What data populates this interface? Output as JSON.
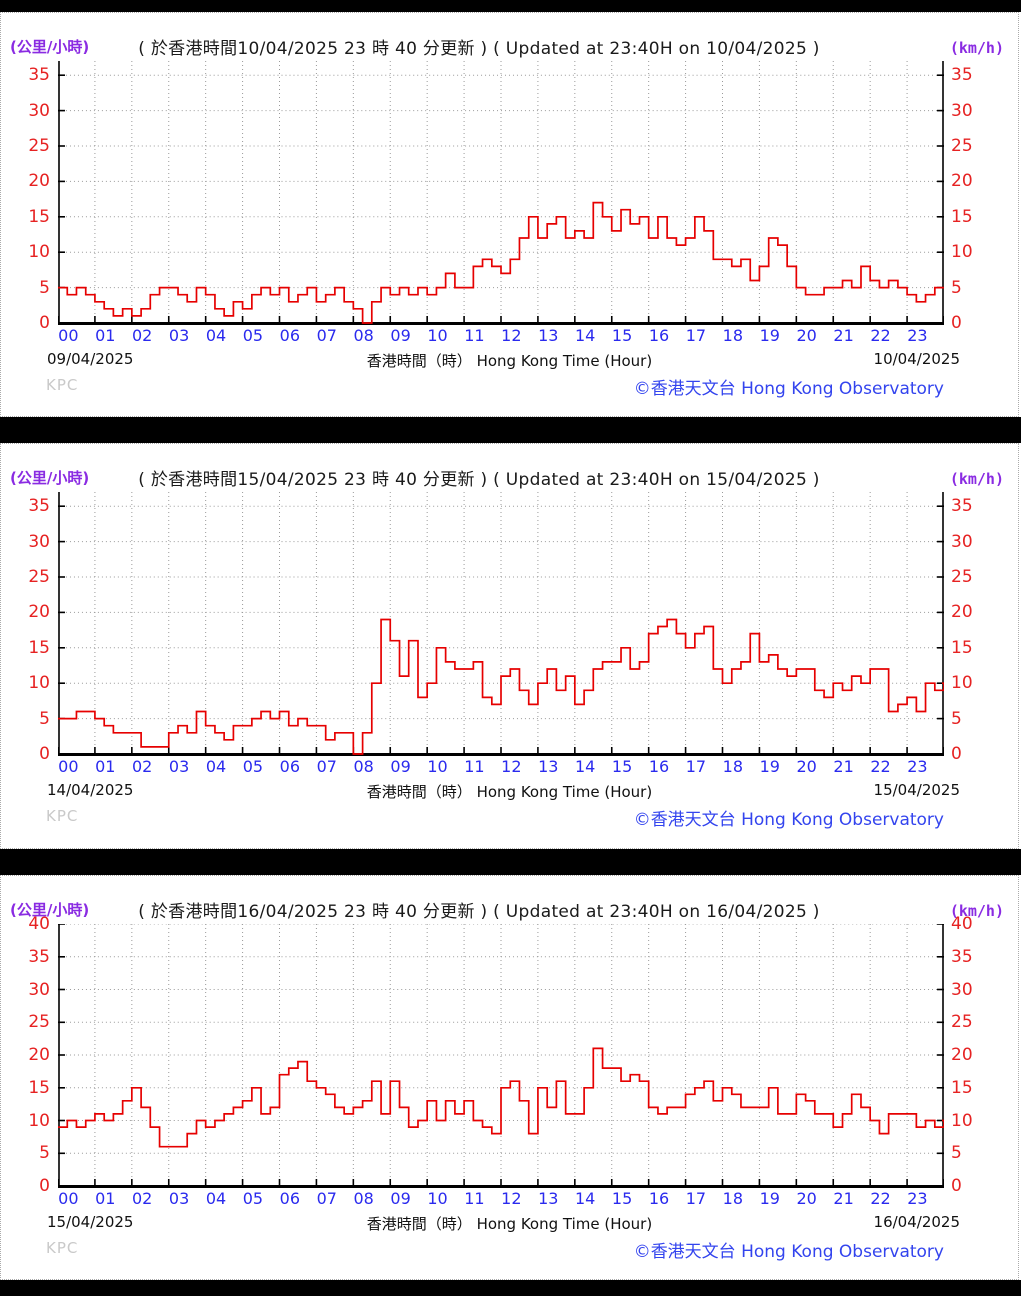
{
  "page": {
    "unit_zh": "(公里/小時)",
    "unit_en": "(km/h)",
    "time_axis_title": "香港時間（時） Hong Kong Time (Hour)",
    "watermark": "KPC",
    "copyright": "©香港天文台 Hong Kong Observatory",
    "hour_labels": [
      "00",
      "01",
      "02",
      "03",
      "04",
      "05",
      "06",
      "07",
      "08",
      "09",
      "10",
      "11",
      "12",
      "13",
      "14",
      "15",
      "16",
      "17",
      "18",
      "19",
      "20",
      "21",
      "22",
      "23"
    ],
    "colors": {
      "series_red": "#e60000",
      "ytick_red": "#e62222",
      "xtick_blue": "#2a2aee",
      "unit_purple": "#8a2be2",
      "copyright_blue": "#3344ee",
      "grid_gray": "#9a9a9a",
      "separator_black": "#000000"
    }
  },
  "chart_data": [
    {
      "type": "line",
      "title": "( 於香港時間10/04/2025 23 時 40 分更新 ) ( Updated at 23:40H on 10/04/2025 )",
      "date_left": "09/04/2025",
      "date_right": "10/04/2025",
      "xlabel": "香港時間（時） Hong Kong Time (Hour)",
      "ylabel_zh": "(公里/小時)",
      "ylabel_en": "(km/h)",
      "y_ticks": [
        0,
        5,
        10,
        15,
        20,
        25,
        30,
        35
      ],
      "y_display_max": 37,
      "x_range_hours": [
        0,
        24
      ],
      "x_step_hours": 0.25,
      "grid": true,
      "legend": "none",
      "values": [
        5,
        4,
        5,
        4,
        3,
        2,
        1,
        2,
        1,
        2,
        4,
        5,
        5,
        4,
        3,
        5,
        4,
        2,
        1,
        3,
        2,
        4,
        5,
        4,
        5,
        3,
        4,
        5,
        3,
        4,
        5,
        3,
        2,
        0,
        3,
        5,
        4,
        5,
        4,
        5,
        4,
        5,
        7,
        5,
        5,
        8,
        9,
        8,
        7,
        9,
        12,
        15,
        12,
        14,
        15,
        12,
        13,
        12,
        17,
        15,
        13,
        16,
        14,
        15,
        12,
        15,
        12,
        11,
        12,
        15,
        13,
        9,
        9,
        8,
        9,
        6,
        8,
        12,
        11,
        8,
        5,
        4,
        4,
        5,
        5,
        6,
        5,
        8,
        6,
        5,
        6,
        5,
        4,
        3,
        4,
        5,
        5
      ]
    },
    {
      "type": "line",
      "title": "( 於香港時間15/04/2025 23 時 40 分更新 ) ( Updated at 23:40H on 15/04/2025 )",
      "date_left": "14/04/2025",
      "date_right": "15/04/2025",
      "xlabel": "香港時間（時） Hong Kong Time (Hour)",
      "ylabel_zh": "(公里/小時)",
      "ylabel_en": "(km/h)",
      "y_ticks": [
        0,
        5,
        10,
        15,
        20,
        25,
        30,
        35
      ],
      "y_display_max": 37,
      "x_range_hours": [
        0,
        24
      ],
      "x_step_hours": 0.25,
      "grid": true,
      "legend": "none",
      "values": [
        5,
        5,
        6,
        6,
        5,
        4,
        3,
        3,
        3,
        1,
        1,
        1,
        3,
        4,
        3,
        6,
        4,
        3,
        2,
        4,
        4,
        5,
        6,
        5,
        6,
        4,
        5,
        4,
        4,
        2,
        3,
        3,
        0,
        3,
        10,
        19,
        16,
        11,
        16,
        8,
        10,
        15,
        13,
        12,
        12,
        13,
        8,
        7,
        11,
        12,
        9,
        7,
        10,
        12,
        9,
        11,
        7,
        9,
        12,
        13,
        13,
        15,
        12,
        13,
        17,
        18,
        19,
        17,
        15,
        17,
        18,
        12,
        10,
        12,
        13,
        17,
        13,
        14,
        12,
        11,
        12,
        12,
        9,
        8,
        10,
        9,
        11,
        10,
        12,
        12,
        6,
        7,
        8,
        6,
        10,
        9,
        10
      ]
    },
    {
      "type": "line",
      "title": "( 於香港時間16/04/2025 23 時 40 分更新 ) ( Updated at 23:40H on 16/04/2025 )",
      "date_left": "15/04/2025",
      "date_right": "16/04/2025",
      "xlabel": "香港時間（時） Hong Kong Time (Hour)",
      "ylabel_zh": "(公里/小時)",
      "ylabel_en": "(km/h)",
      "y_ticks": [
        0,
        5,
        10,
        15,
        20,
        25,
        30,
        35,
        40
      ],
      "y_display_max": 40,
      "x_range_hours": [
        0,
        24
      ],
      "x_step_hours": 0.25,
      "grid": true,
      "legend": "none",
      "values": [
        9,
        10,
        9,
        10,
        11,
        10,
        11,
        13,
        15,
        12,
        9,
        6,
        6,
        6,
        8,
        10,
        9,
        10,
        11,
        12,
        13,
        15,
        11,
        12,
        17,
        18,
        19,
        16,
        15,
        14,
        12,
        11,
        12,
        13,
        16,
        11,
        16,
        12,
        9,
        10,
        13,
        10,
        13,
        11,
        13,
        10,
        9,
        8,
        15,
        16,
        13,
        8,
        15,
        12,
        16,
        11,
        11,
        15,
        21,
        18,
        18,
        16,
        17,
        16,
        12,
        11,
        12,
        12,
        14,
        15,
        16,
        13,
        15,
        14,
        12,
        12,
        12,
        15,
        11,
        11,
        14,
        13,
        11,
        11,
        9,
        11,
        14,
        12,
        10,
        8,
        11,
        11,
        11,
        9,
        10,
        9,
        10
      ]
    }
  ]
}
